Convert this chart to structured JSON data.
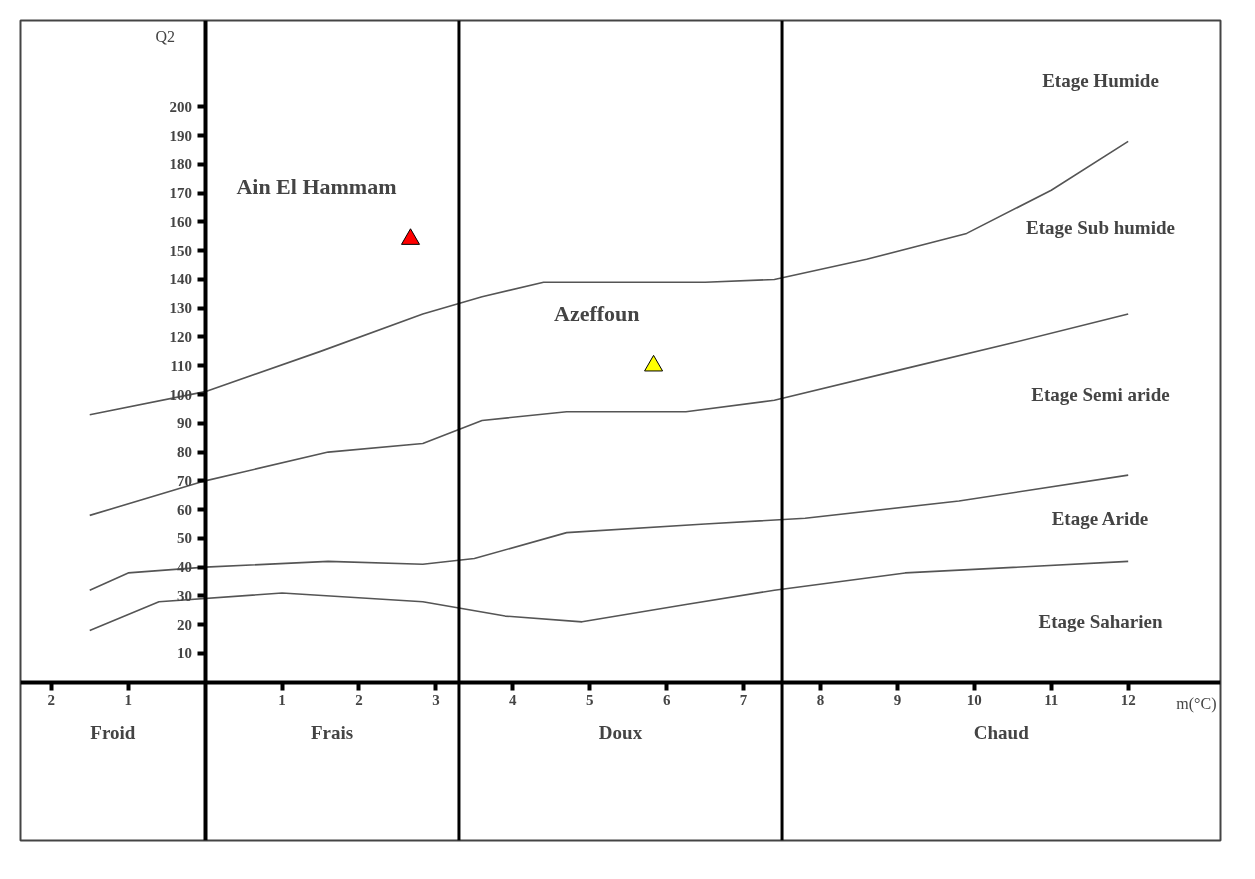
{
  "chart_data": {
    "type": "line",
    "xlabel": "m(°C)",
    "ylabel": "Q2",
    "xlim": [
      -2.4,
      13.2
    ],
    "ylim": [
      -55,
      230
    ],
    "xticks": [
      {
        "value": -2,
        "label": "2"
      },
      {
        "value": -1,
        "label": "1"
      },
      1,
      2,
      3,
      4,
      5,
      6,
      7,
      8,
      9,
      10,
      11,
      12
    ],
    "yticks": [
      10,
      20,
      30,
      40,
      50,
      60,
      70,
      80,
      90,
      100,
      110,
      120,
      130,
      140,
      150,
      160,
      170,
      180,
      190,
      200
    ],
    "series": [
      {
        "color": "#555555",
        "x": [
          -1.5,
          0,
          1.5,
          2.83,
          3.6,
          4.4,
          5.5,
          6.5,
          7.4,
          8.6,
          9.9,
          11,
          12
        ],
        "values": [
          93,
          101,
          115,
          128,
          134,
          139,
          139,
          139,
          140,
          147,
          156,
          171,
          188
        ]
      },
      {
        "color": "#555555",
        "x": [
          -1.5,
          0,
          1.6,
          2.83,
          3.6,
          4.7,
          6.25,
          7.4,
          9.1,
          10.5,
          12
        ],
        "values": [
          58,
          70,
          80,
          83,
          91,
          94,
          94,
          98,
          109,
          118,
          128
        ]
      },
      {
        "color": "#555555",
        "x": [
          -1.5,
          -1,
          0,
          1.6,
          2.83,
          3.5,
          4.7,
          6.5,
          7.8,
          9.8,
          12
        ],
        "values": [
          32,
          38,
          40,
          42,
          41,
          43,
          52,
          55,
          57,
          63,
          72
        ]
      },
      {
        "color": "#555555",
        "x": [
          -1.5,
          -0.6,
          1,
          2.83,
          3.9,
          4.9,
          6.25,
          7.4,
          9.1,
          12
        ],
        "values": [
          18,
          28,
          31,
          28,
          23,
          21,
          27,
          32,
          38,
          42
        ]
      },
      {
        "type": "scatter",
        "name": "Ain El Hammam",
        "color": "#ff0000",
        "marker": "triangle",
        "x": [
          2.67
        ],
        "values": [
          154
        ]
      },
      {
        "type": "scatter",
        "name": "Azeffoun",
        "color": "#ffff00",
        "marker": "triangle",
        "x": [
          5.83
        ],
        "values": [
          110
        ]
      }
    ],
    "ref_lines": [
      {
        "axis": "x",
        "value": 3.3,
        "color": "#000000"
      },
      {
        "axis": "x",
        "value": 7.5,
        "color": "#000000"
      }
    ],
    "annotations": [
      "Etage Humide",
      "Etage Sub humide",
      "Etage Semi aride",
      "Etage Aride",
      "Etage Saharien",
      "Froid",
      "Frais",
      "Doux",
      "Chaud"
    ]
  }
}
